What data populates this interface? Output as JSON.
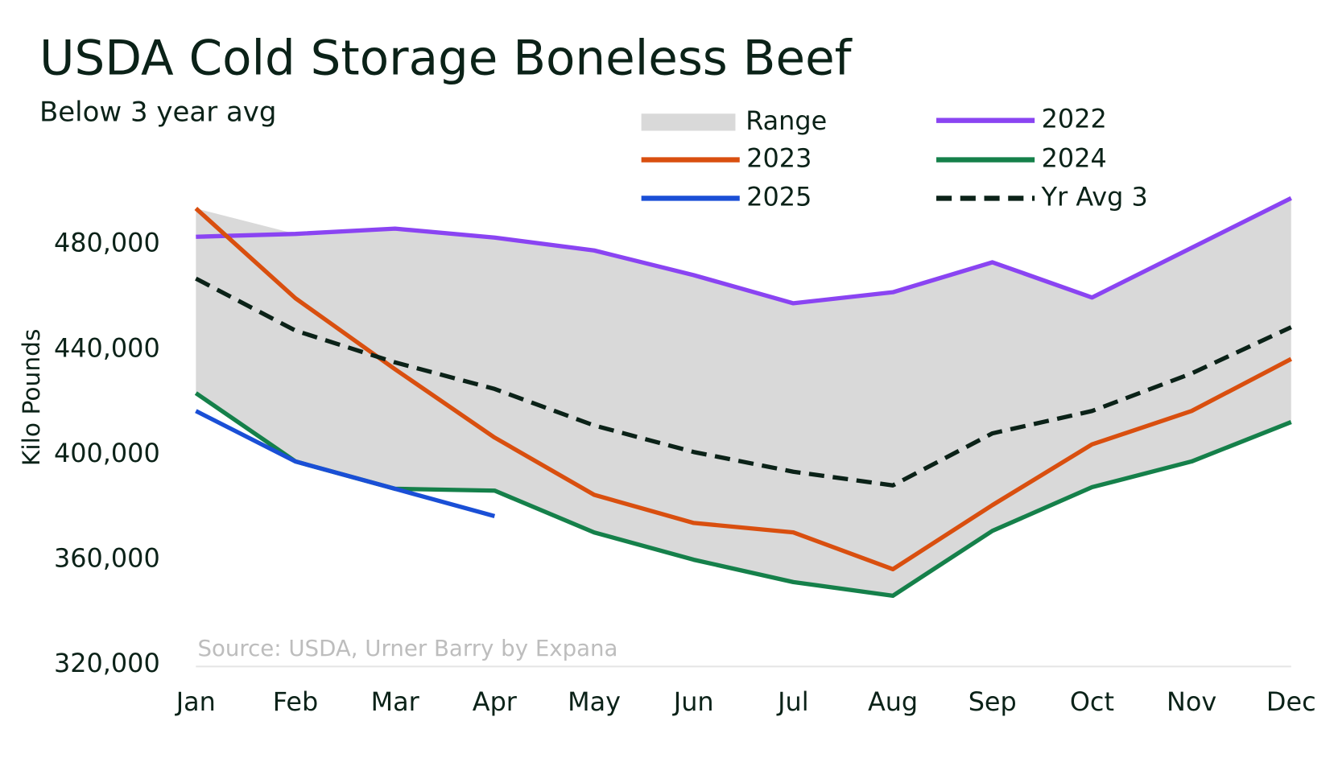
{
  "chart_data": {
    "type": "line",
    "title": "USDA Cold Storage Boneless Beef",
    "subtitle": "Below 3 year avg",
    "y_label": "Kilo Pounds",
    "annotation": "Source: USDA, Urner Barry by Expana",
    "categories": [
      "Jan",
      "Feb",
      "Mar",
      "Apr",
      "May",
      "Jun",
      "Jul",
      "Aug",
      "Sep",
      "Oct",
      "Nov",
      "Dec"
    ],
    "ylim": [
      320000,
      500000
    ],
    "yticks": [
      {
        "value": 320000,
        "label": "320,000"
      },
      {
        "value": 360000,
        "label": "360,000"
      },
      {
        "value": 400000,
        "label": "400,000"
      },
      {
        "value": 440000,
        "label": "440,000"
      },
      {
        "value": 480000,
        "label": "480,000"
      }
    ],
    "range": {
      "name": "Range",
      "color": "#d9d9d9",
      "high": [
        493700,
        484000,
        486000,
        482600,
        477700,
        468300,
        457600,
        461800,
        473200,
        459800,
        478700,
        497600
      ],
      "low": [
        423400,
        397400,
        387000,
        386300,
        370400,
        360000,
        351500,
        346300,
        371000,
        387600,
        397400,
        412400
      ]
    },
    "series": [
      {
        "name": "2022",
        "color": "#8a44f2",
        "values": [
          482900,
          484000,
          486000,
          482600,
          477700,
          468300,
          457600,
          461800,
          473200,
          459800,
          478700,
          497600
        ]
      },
      {
        "name": "2023",
        "color": "#d94f0f",
        "values": [
          493700,
          459500,
          432500,
          406500,
          384700,
          374000,
          370400,
          356400,
          380800,
          403900,
          416600,
          436400
        ]
      },
      {
        "name": "2024",
        "color": "#15804a",
        "values": [
          423400,
          397400,
          387000,
          386300,
          370400,
          360000,
          351500,
          346300,
          371000,
          387600,
          397400,
          412400
        ]
      },
      {
        "name": "2025",
        "color": "#1a4fd6",
        "values": [
          416600,
          397400,
          387000,
          376600,
          null,
          null,
          null,
          null,
          null,
          null,
          null,
          null
        ]
      },
      {
        "name": "Yr Avg 3",
        "color": "#0b2218",
        "dashed": true,
        "values": [
          467000,
          447200,
          435100,
          425000,
          411100,
          401000,
          393500,
          388300,
          408100,
          416600,
          430900,
          448500
        ]
      }
    ]
  }
}
